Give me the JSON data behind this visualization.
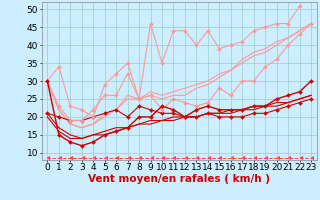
{
  "background_color": "#cceeff",
  "grid_color": "#99cccc",
  "xlabel": "Vent moyen/en rafales ( km/h )",
  "xlabel_color": "#cc0000",
  "xlabel_fontsize": 7.5,
  "x_ticks": [
    0,
    1,
    2,
    3,
    4,
    5,
    6,
    7,
    8,
    9,
    10,
    11,
    12,
    13,
    14,
    15,
    16,
    17,
    18,
    19,
    20,
    21,
    22,
    23
  ],
  "ylim": [
    8,
    52
  ],
  "yticks": [
    10,
    15,
    20,
    25,
    30,
    35,
    40,
    45,
    50
  ],
  "tick_fontsize": 6.5,
  "series": [
    {
      "x": [
        0,
        1,
        2,
        3,
        4,
        5,
        6,
        7,
        8,
        9,
        10,
        11,
        12,
        13,
        14,
        15,
        16,
        17,
        18,
        19,
        20,
        21,
        22,
        23
      ],
      "y": [
        30,
        15,
        13,
        12,
        13,
        15,
        16,
        17,
        20,
        20,
        23,
        22,
        20,
        22,
        23,
        22,
        22,
        22,
        23,
        23,
        25,
        26,
        27,
        30
      ],
      "color": "#cc0000",
      "marker": "D",
      "markersize": 2.0,
      "linewidth": 1.0,
      "zorder": 5
    },
    {
      "x": [
        0,
        1,
        2,
        3,
        4,
        5,
        6,
        7,
        8,
        9,
        10,
        11,
        12,
        13,
        14,
        15,
        16,
        17,
        18,
        19,
        20,
        21,
        22,
        23
      ],
      "y": [
        21,
        20,
        19,
        19,
        20,
        21,
        22,
        20,
        23,
        22,
        21,
        21,
        20,
        20,
        21,
        20,
        20,
        20,
        21,
        21,
        22,
        23,
        24,
        25
      ],
      "color": "#cc0000",
      "marker": "D",
      "markersize": 2.0,
      "linewidth": 0.8,
      "zorder": 4
    },
    {
      "x": [
        0,
        1,
        2,
        3,
        4,
        5,
        6,
        7,
        8,
        9,
        10,
        11,
        12,
        13,
        14,
        15,
        16,
        17,
        18,
        19,
        20,
        21,
        22,
        23
      ],
      "y": [
        20,
        16,
        14,
        14,
        15,
        15,
        16,
        17,
        18,
        19,
        19,
        20,
        20,
        20,
        21,
        21,
        22,
        22,
        23,
        23,
        24,
        24,
        25,
        26
      ],
      "color": "#cc0000",
      "marker": null,
      "linewidth": 0.8,
      "zorder": 3
    },
    {
      "x": [
        0,
        1,
        2,
        3,
        4,
        5,
        6,
        7,
        8,
        9,
        10,
        11,
        12,
        13,
        14,
        15,
        16,
        17,
        18,
        19,
        20,
        21,
        22,
        23
      ],
      "y": [
        21,
        17,
        15,
        14,
        15,
        16,
        17,
        17,
        18,
        18,
        19,
        19,
        20,
        20,
        21,
        21,
        21,
        22,
        22,
        23,
        23,
        24,
        25,
        26
      ],
      "color": "#cc0000",
      "marker": null,
      "linewidth": 0.8,
      "zorder": 3
    },
    {
      "x": [
        0,
        1,
        2,
        3,
        4,
        5,
        6,
        7,
        8,
        9,
        10,
        11,
        12,
        13,
        14,
        15,
        16,
        17,
        18,
        19,
        20,
        21,
        22,
        23
      ],
      "y": [
        30,
        34,
        23,
        22,
        20,
        29,
        32,
        35,
        25,
        46,
        35,
        44,
        44,
        40,
        44,
        39,
        40,
        41,
        44,
        45,
        46,
        46,
        51,
        null
      ],
      "color": "#ff9999",
      "marker": "D",
      "markersize": 2.0,
      "linewidth": 0.8,
      "zorder": 4
    },
    {
      "x": [
        0,
        1,
        2,
        3,
        4,
        5,
        6,
        7,
        8,
        9,
        10,
        11,
        12,
        13,
        14,
        15,
        16,
        17,
        18,
        19,
        20,
        21,
        22,
        23
      ],
      "y": [
        30,
        23,
        19,
        19,
        22,
        26,
        26,
        32,
        25,
        26,
        22,
        25,
        24,
        23,
        24,
        28,
        26,
        30,
        30,
        34,
        36,
        40,
        43,
        46
      ],
      "color": "#ff9999",
      "marker": "D",
      "markersize": 2.0,
      "linewidth": 0.8,
      "zorder": 4
    },
    {
      "x": [
        0,
        1,
        2,
        3,
        4,
        5,
        6,
        7,
        8,
        9,
        10,
        11,
        12,
        13,
        14,
        15,
        16,
        17,
        18,
        19,
        20,
        21,
        22,
        23
      ],
      "y": [
        30,
        22,
        18,
        17,
        18,
        20,
        22,
        25,
        25,
        26,
        25,
        26,
        26,
        28,
        29,
        31,
        33,
        35,
        37,
        38,
        40,
        42,
        44,
        46
      ],
      "color": "#ff9999",
      "marker": null,
      "linewidth": 0.8,
      "zorder": 3
    },
    {
      "x": [
        0,
        1,
        2,
        3,
        4,
        5,
        6,
        7,
        8,
        9,
        10,
        11,
        12,
        13,
        14,
        15,
        16,
        17,
        18,
        19,
        20,
        21,
        22,
        23
      ],
      "y": [
        30,
        22,
        18,
        17,
        18,
        21,
        22,
        26,
        25,
        27,
        26,
        27,
        28,
        29,
        30,
        32,
        33,
        36,
        38,
        39,
        41,
        42,
        44,
        46
      ],
      "color": "#ff9999",
      "marker": null,
      "linewidth": 0.8,
      "zorder": 3
    },
    {
      "x": [
        0,
        1,
        2,
        3,
        4,
        5,
        6,
        7,
        8,
        9,
        10,
        11,
        12,
        13,
        14,
        15,
        16,
        17,
        18,
        19,
        20,
        21,
        22,
        23
      ],
      "y": [
        8.5,
        8.5,
        8.5,
        8.5,
        8.5,
        8.5,
        8.5,
        8.5,
        8.5,
        8.5,
        8.5,
        8.5,
        8.5,
        8.5,
        8.5,
        8.5,
        8.5,
        8.5,
        8.5,
        8.5,
        8.5,
        8.5,
        8.5,
        8.5
      ],
      "color": "#ff4444",
      "marker": 4,
      "markersize": 3,
      "linewidth": 0.7,
      "linestyle": "--",
      "zorder": 2
    }
  ]
}
